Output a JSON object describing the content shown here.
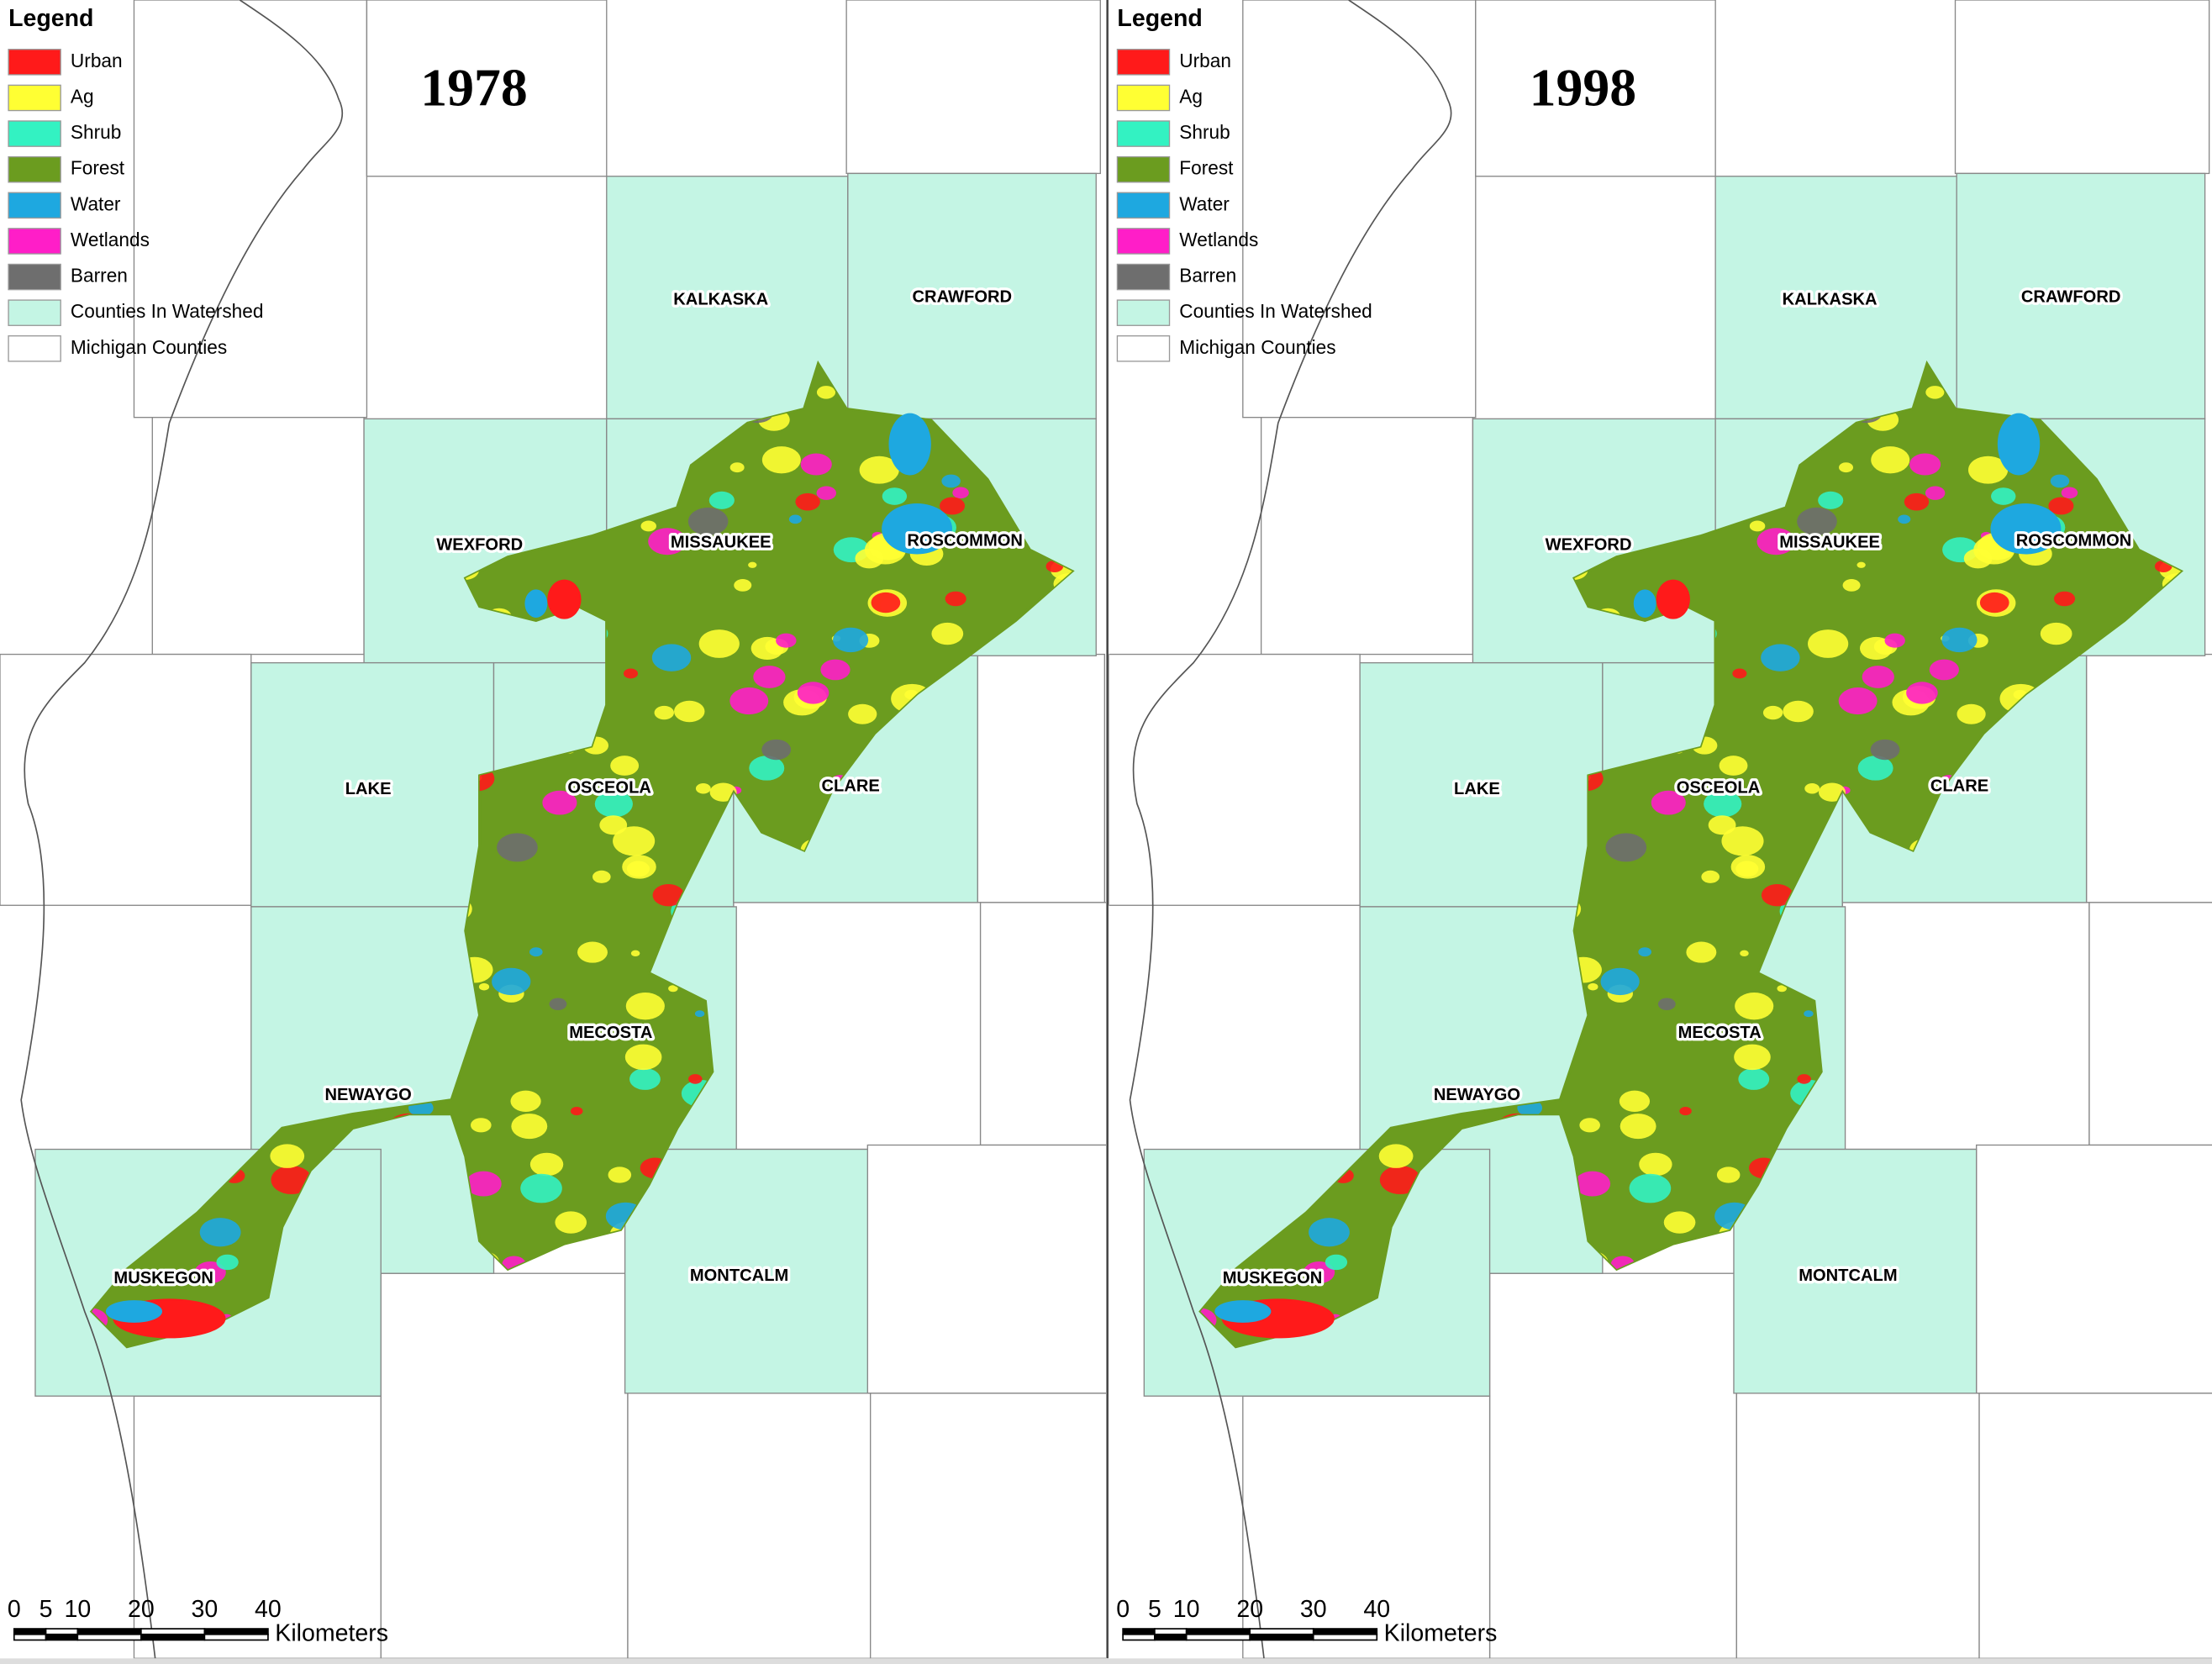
{
  "panels": [
    {
      "title": "1978"
    },
    {
      "title": "1998"
    }
  ],
  "legend": {
    "title": "Legend",
    "items": [
      {
        "label": "Urban",
        "color": "#ff1a1a"
      },
      {
        "label": "Ag",
        "color": "#ffff33"
      },
      {
        "label": "Shrub",
        "color": "#33f2c2"
      },
      {
        "label": "Forest",
        "color": "#6b9c1f"
      },
      {
        "label": "Water",
        "color": "#1ea8e0"
      },
      {
        "label": "Wetlands",
        "color": "#ff1ec8"
      },
      {
        "label": "Barren",
        "color": "#6e6e6e"
      },
      {
        "label": "Counties In Watershed",
        "color": "#c4f5e4"
      },
      {
        "label": "Michigan Counties",
        "color": "#ffffff"
      }
    ]
  },
  "counties": [
    "KALKASKA",
    "CRAWFORD",
    "WEXFORD",
    "MISSAUKEE",
    "ROSCOMMON",
    "LAKE",
    "OSCEOLA",
    "CLARE",
    "MECOSTA",
    "NEWAYGO",
    "MUSKEGON",
    "MONTCALM"
  ],
  "scale": {
    "ticks": [
      0,
      5,
      10,
      20,
      30,
      40
    ],
    "unit": "Kilometers"
  }
}
